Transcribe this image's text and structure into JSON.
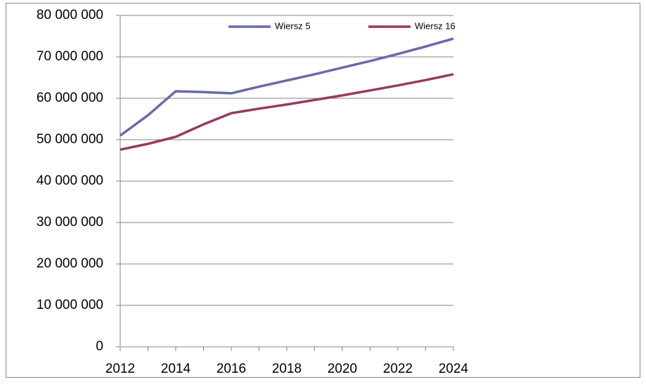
{
  "chart_data": {
    "type": "line",
    "x": [
      2012,
      2013,
      2014,
      2015,
      2016,
      2017,
      2018,
      2019,
      2020,
      2021,
      2022,
      2023,
      2024
    ],
    "series": [
      {
        "name": "Wiersz 5",
        "color": "#686ba6",
        "values": [
          51000000,
          55900000,
          61700000,
          61500000,
          61200000,
          62800000,
          64300000,
          65800000,
          67400000,
          69000000,
          70700000,
          72500000,
          74400000
        ]
      },
      {
        "name": "Wiersz 16",
        "color": "#953a64",
        "values": [
          47600000,
          49000000,
          50700000,
          53700000,
          56400000,
          57500000,
          58500000,
          59600000,
          60700000,
          61900000,
          63100000,
          64400000,
          65800000
        ]
      }
    ],
    "xlim": [
      2012,
      2024
    ],
    "xticks": [
      2012,
      2014,
      2016,
      2018,
      2020,
      2022,
      2024
    ],
    "ylim": [
      0,
      80000000
    ],
    "yticks": [
      0,
      {
        "value": 10000000,
        "label": "10 000 000"
      },
      {
        "value": 20000000,
        "label": "20 000 000"
      },
      {
        "value": 30000000,
        "label": "30 000 000"
      },
      {
        "value": 40000000,
        "label": "40 000 000"
      },
      {
        "value": 50000000,
        "label": "50 000 000"
      },
      {
        "value": 60000000,
        "label": "60 000 000"
      },
      {
        "value": 70000000,
        "label": "70 000 000"
      },
      {
        "value": 80000000,
        "label": "80 000 000"
      }
    ],
    "grid": true,
    "legend": "top"
  }
}
